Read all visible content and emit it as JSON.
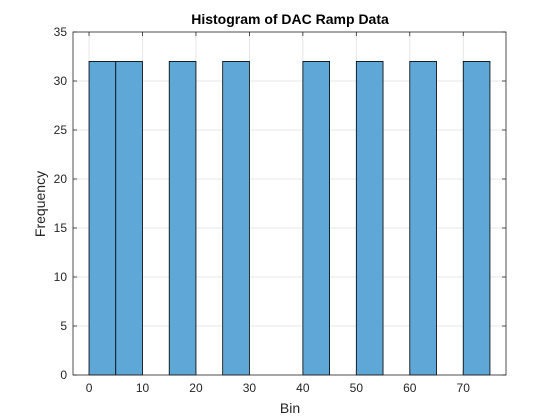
{
  "chart_data": {
    "type": "bar",
    "title": "Histogram of DAC Ramp Data",
    "xlabel": "Bin",
    "ylabel": "Frequency",
    "xlim": [
      -3,
      78
    ],
    "ylim": [
      0,
      35
    ],
    "xticks": [
      0,
      10,
      20,
      30,
      40,
      50,
      60,
      70
    ],
    "yticks": [
      0,
      5,
      10,
      15,
      20,
      25,
      30,
      35
    ],
    "bin_width": 5,
    "bins": [
      {
        "start": 0,
        "end": 5,
        "count": 32
      },
      {
        "start": 5,
        "end": 10,
        "count": 32
      },
      {
        "start": 15,
        "end": 20,
        "count": 32
      },
      {
        "start": 25,
        "end": 30,
        "count": 32
      },
      {
        "start": 40,
        "end": 45,
        "count": 32
      },
      {
        "start": 50,
        "end": 55,
        "count": 32
      },
      {
        "start": 60,
        "end": 65,
        "count": 32
      },
      {
        "start": 70,
        "end": 75,
        "count": 32
      }
    ],
    "grid": true,
    "bar_color": "#5ea7d6",
    "edge_color": "#000000",
    "grid_color": "#dfdfdf",
    "axis_color": "#262626"
  }
}
